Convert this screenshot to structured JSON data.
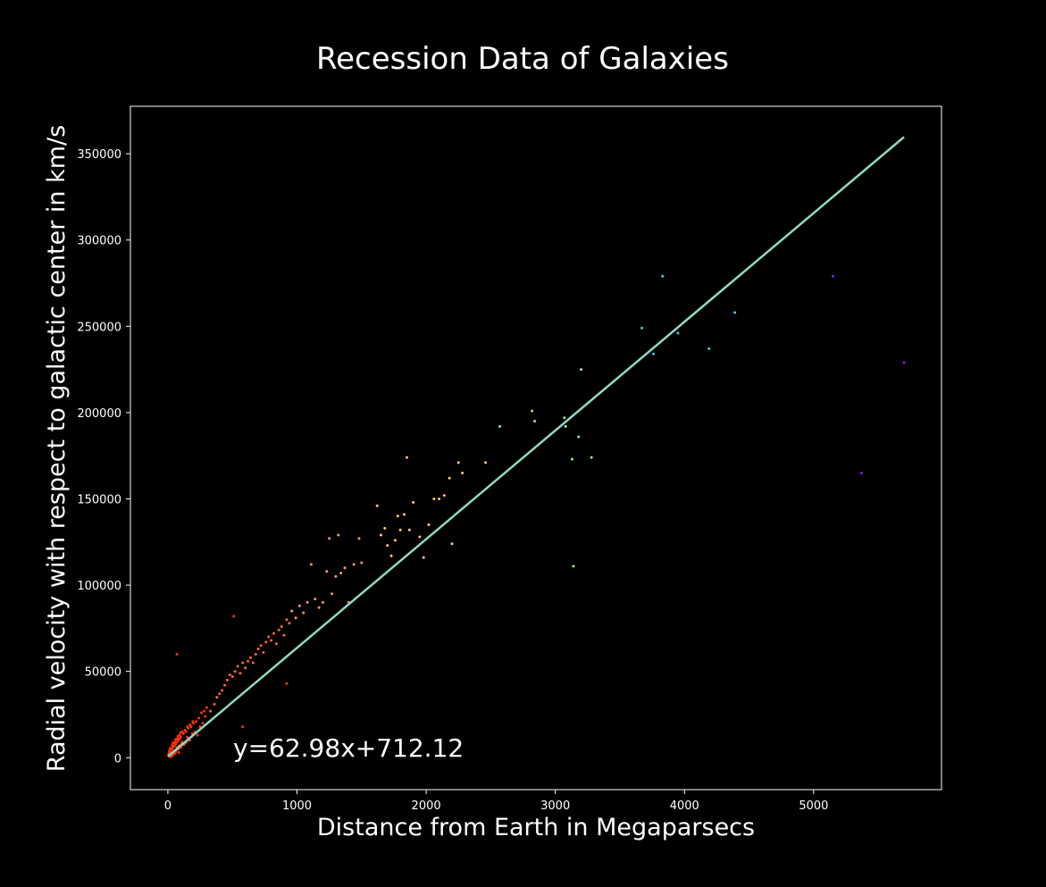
{
  "chart_data": {
    "type": "scatter",
    "title": "Recession Data of Galaxies",
    "xlabel": "Distance from Earth in Megaparsecs",
    "ylabel": "Radial velocity with respect to galactic center in km/s",
    "xlim": [
      -290,
      5990
    ],
    "ylim": [
      -18500,
      377500
    ],
    "xticks": [
      0,
      1000,
      2000,
      3000,
      4000,
      5000
    ],
    "yticks": [
      0,
      50000,
      100000,
      150000,
      200000,
      250000,
      300000,
      350000
    ],
    "grid": false,
    "background": "#000000",
    "foreground": "#ffffff",
    "fit": {
      "slope": 62.98,
      "intercept": 712.12,
      "x_range": [
        0,
        5700
      ],
      "color": "#8fd8c8",
      "label": "y=62.98x+712.12"
    },
    "series": [
      {
        "x": [
          5,
          10,
          15,
          20,
          25,
          30,
          35,
          40,
          45,
          50,
          55,
          60,
          65,
          70,
          75,
          80,
          85,
          90,
          95,
          100,
          110,
          120,
          130,
          140,
          150,
          160,
          170,
          180,
          190,
          200,
          210,
          220,
          230,
          240,
          250,
          260,
          270,
          280,
          290,
          300,
          12,
          22,
          32,
          42,
          52,
          62,
          72,
          82,
          92,
          102,
          112,
          122,
          132,
          142,
          152,
          162,
          172,
          182,
          192,
          8,
          18,
          28,
          38,
          48,
          58,
          68,
          78,
          88,
          98,
          108,
          70,
          510,
          580,
          920
        ],
        "y": [
          1500,
          3000,
          800,
          4500,
          2000,
          5000,
          1200,
          6000,
          3500,
          7000,
          2500,
          8000,
          4000,
          9000,
          5500,
          10000,
          3000,
          11000,
          6500,
          12000,
          9000,
          14000,
          8000,
          15000,
          12000,
          17000,
          10000,
          18000,
          14000,
          20000,
          15000,
          21000,
          13000,
          23000,
          18000,
          26000,
          20000,
          27000,
          24000,
          29000,
          4000,
          500,
          7000,
          2000,
          9000,
          3500,
          11000,
          5000,
          13000,
          6000,
          15000,
          7500,
          16000,
          9000,
          18000,
          11000,
          19000,
          12000,
          21000,
          2000,
          5500,
          3000,
          8500,
          4000,
          10500,
          6000,
          12500,
          7000,
          14500,
          8500,
          60000,
          82000,
          18000,
          43000
        ],
        "color": "#ff3300"
      },
      {
        "x": [
          330,
          360,
          380,
          400,
          420,
          440,
          460,
          480,
          500,
          520,
          540,
          560,
          580,
          600,
          620,
          640,
          660,
          680,
          700,
          720,
          740,
          760,
          780,
          800,
          820,
          840,
          860,
          880,
          900,
          920,
          940
        ],
        "y": [
          27000,
          31000,
          35000,
          37000,
          39000,
          42000,
          45000,
          48000,
          47000,
          50000,
          53000,
          49000,
          55000,
          52000,
          56000,
          58000,
          55000,
          60000,
          63000,
          65000,
          61000,
          67000,
          70000,
          68000,
          72000,
          66000,
          74000,
          76000,
          71000,
          80000,
          78000
        ],
        "color": "#ff6633"
      },
      {
        "x": [
          960,
          990,
          1020,
          1050,
          1080,
          1110,
          1140,
          1170,
          1200,
          1230,
          1250,
          1270,
          1300,
          1320,
          1340,
          1370,
          1400,
          1440,
          1480,
          1500
        ],
        "y": [
          85000,
          81000,
          88000,
          84000,
          90000,
          112000,
          92000,
          87000,
          90000,
          108000,
          127000,
          95000,
          105000,
          129000,
          107000,
          110000,
          90000,
          112000,
          127000,
          113000
        ],
        "color": "#ff9955"
      },
      {
        "x": [
          1620,
          1650,
          1680,
          1700,
          1730,
          1760,
          1780,
          1800,
          1830,
          1850,
          1870,
          1900,
          1950,
          1980,
          2020,
          2060,
          2100,
          2140,
          2180,
          2200,
          2250,
          2280,
          2460
        ],
        "y": [
          146000,
          129000,
          133000,
          123000,
          117000,
          126000,
          140000,
          132000,
          141000,
          174000,
          132000,
          148000,
          128000,
          116000,
          135000,
          150000,
          150000,
          152000,
          162000,
          124000,
          171000,
          165000,
          171000
        ],
        "color": "#ffcc66"
      },
      {
        "x": [
          2570,
          2820,
          2840,
          3070,
          3080,
          3130,
          3140,
          3180,
          3200,
          3280
        ],
        "y": [
          192000,
          201000,
          195000,
          197000,
          192000,
          173000,
          111000,
          186000,
          225000,
          174000
        ],
        "color": "#99ee88"
      },
      {
        "x": [
          3670,
          3760,
          3830,
          3950,
          4190,
          4390
        ],
        "y": [
          249000,
          234000,
          279000,
          246000,
          237000,
          258000
        ],
        "color": "#44ccdd"
      },
      {
        "x": [
          5150,
          5370,
          5700
        ],
        "y": [
          279000,
          165000,
          229000
        ],
        "color": "#7722ff"
      }
    ]
  }
}
